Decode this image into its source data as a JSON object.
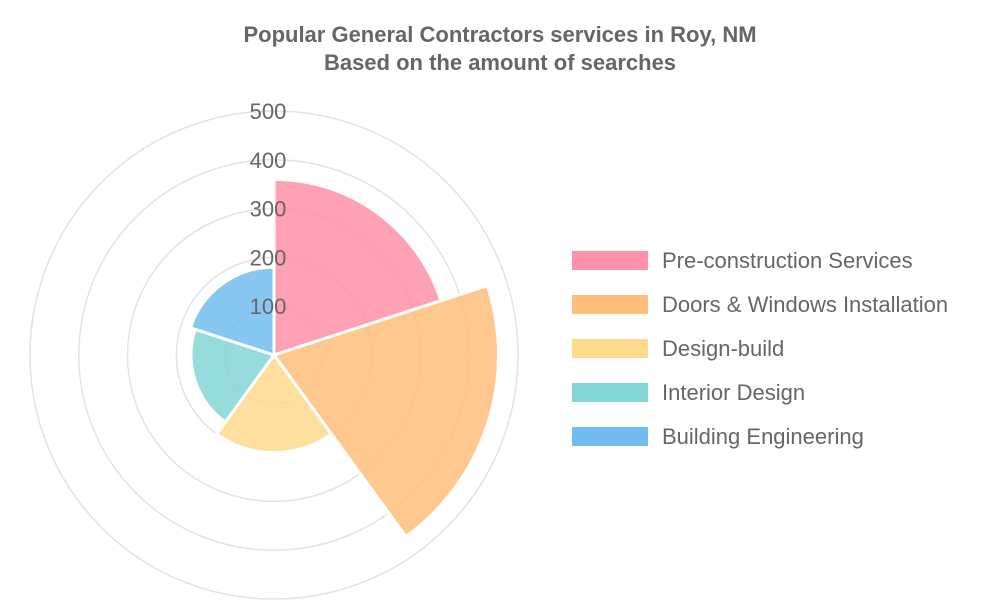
{
  "chart_data": {
    "type": "polarArea",
    "title": "Popular General Contractors services in Roy, NM",
    "subtitle": "Based on the amount of searches",
    "categories": [
      "Pre-construction Services",
      "Doors & Windows Installation",
      "Design-build",
      "Interior Design",
      "Building Engineering"
    ],
    "values": [
      360,
      460,
      200,
      170,
      180
    ],
    "colors": [
      "#ff91a8",
      "#ffbe7b",
      "#ffd98c",
      "#85d6d6",
      "#72bdf0"
    ],
    "r_ticks": [
      100,
      200,
      300,
      400,
      500
    ],
    "r_max": 500,
    "legend_position": "right"
  }
}
